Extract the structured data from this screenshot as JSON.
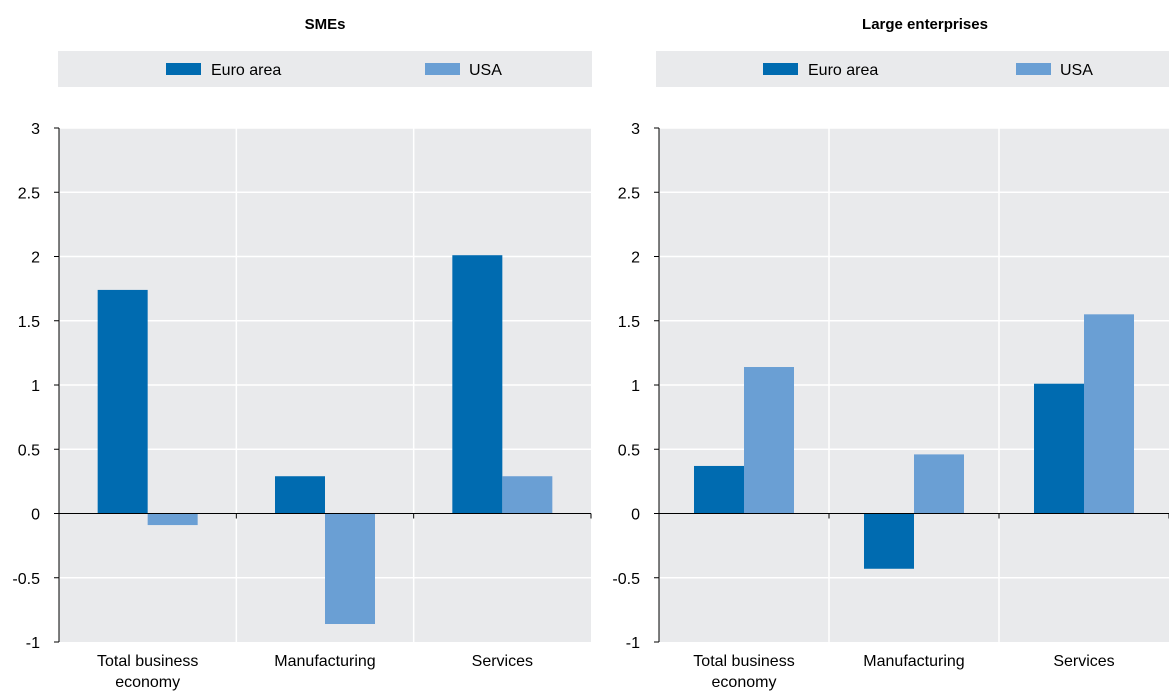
{
  "chart_data": [
    {
      "type": "bar",
      "title": "SMEs",
      "categories": [
        "Total business economy",
        "Manufacturing",
        "Services"
      ],
      "category_lines": [
        [
          "Total business",
          "economy"
        ],
        [
          "Manufacturing"
        ],
        [
          "Services"
        ]
      ],
      "series": [
        {
          "name": "Euro area",
          "values": [
            1.74,
            0.29,
            2.01
          ]
        },
        {
          "name": "USA",
          "values": [
            -0.09,
            -0.86,
            0.29
          ]
        }
      ],
      "ylim": [
        -1,
        3
      ],
      "yticks": [
        "3",
        "2.5",
        "2",
        "1.5",
        "1",
        "0.5",
        "0",
        "-0.5",
        "-1"
      ],
      "grid": true,
      "legend": "top",
      "xlabel": "",
      "ylabel": ""
    },
    {
      "type": "bar",
      "title": "Large enterprises",
      "categories": [
        "Total business economy",
        "Manufacturing",
        "Services"
      ],
      "category_lines": [
        [
          "Total business",
          "economy"
        ],
        [
          "Manufacturing"
        ],
        [
          "Services"
        ]
      ],
      "series": [
        {
          "name": "Euro area",
          "values": [
            0.37,
            -0.43,
            1.01
          ]
        },
        {
          "name": "USA",
          "values": [
            1.14,
            0.46,
            1.55
          ]
        }
      ],
      "ylim": [
        -1,
        3
      ],
      "yticks": [
        "3",
        "2.5",
        "2",
        "1.5",
        "1",
        "0.5",
        "0",
        "-0.5",
        "-1"
      ],
      "grid": true,
      "legend": "top",
      "xlabel": "",
      "ylabel": ""
    }
  ],
  "colors": {
    "euro_area": "#006bb0",
    "usa": "#6a9fd4",
    "plot_background": "#e9eaec",
    "legend_background": "#e9eaec",
    "grid": "#ffffff",
    "axis": "#000000"
  }
}
